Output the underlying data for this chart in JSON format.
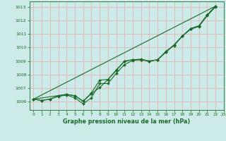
{
  "title": "Graphe pression niveau de la mer (hPa)",
  "xlim": [
    -0.5,
    23
  ],
  "ylim": [
    1005.4,
    1013.4
  ],
  "yticks": [
    1006,
    1007,
    1008,
    1009,
    1010,
    1011,
    1012,
    1013
  ],
  "xticks": [
    0,
    1,
    2,
    3,
    4,
    5,
    6,
    7,
    8,
    9,
    10,
    11,
    12,
    13,
    14,
    15,
    16,
    17,
    18,
    19,
    20,
    21,
    22,
    23
  ],
  "bg_color": "#cceae7",
  "grid_color": "#e8a8a8",
  "line_color": "#1a6b2a",
  "line1_x": [
    0,
    1,
    2,
    3,
    4,
    5,
    6,
    7,
    8,
    9,
    10,
    11,
    12,
    13,
    14,
    15,
    16,
    17,
    18,
    19,
    20,
    21,
    22
  ],
  "line1_y": [
    1006.2,
    1006.1,
    1006.2,
    1006.4,
    1006.5,
    1006.3,
    1005.85,
    1006.3,
    1007.35,
    1007.35,
    1008.1,
    1008.75,
    1009.05,
    1009.1,
    1009.0,
    1009.1,
    1009.7,
    1010.15,
    1010.85,
    1011.35,
    1011.55,
    1012.35,
    1013.0
  ],
  "line2_x": [
    0,
    1,
    2,
    3,
    4,
    5,
    6,
    7,
    8,
    9,
    10,
    11,
    12,
    13,
    14,
    15,
    16,
    17,
    18,
    19,
    20,
    21,
    22
  ],
  "line2_y": [
    1006.2,
    1006.1,
    1006.2,
    1006.45,
    1006.55,
    1006.45,
    1006.05,
    1006.65,
    1007.6,
    1007.65,
    1008.3,
    1009.0,
    1009.1,
    1009.1,
    1009.0,
    1009.1,
    1009.7,
    1010.2,
    1010.85,
    1011.4,
    1011.6,
    1012.4,
    1013.05
  ],
  "line3_x": [
    0,
    4,
    5,
    6,
    7,
    8,
    9,
    10,
    11,
    12,
    13,
    14,
    15,
    16,
    17,
    18,
    19,
    20,
    21,
    22
  ],
  "line3_y": [
    1006.2,
    1006.55,
    1006.45,
    1006.05,
    1006.6,
    1007.05,
    1007.65,
    1008.35,
    1009.0,
    1009.1,
    1009.15,
    1009.0,
    1009.1,
    1009.65,
    1010.2,
    1010.85,
    1011.4,
    1011.6,
    1012.4,
    1013.05
  ],
  "line4_x": [
    0,
    22
  ],
  "line4_y": [
    1006.2,
    1013.05
  ],
  "figsize": [
    3.2,
    2.0
  ],
  "dpi": 100
}
